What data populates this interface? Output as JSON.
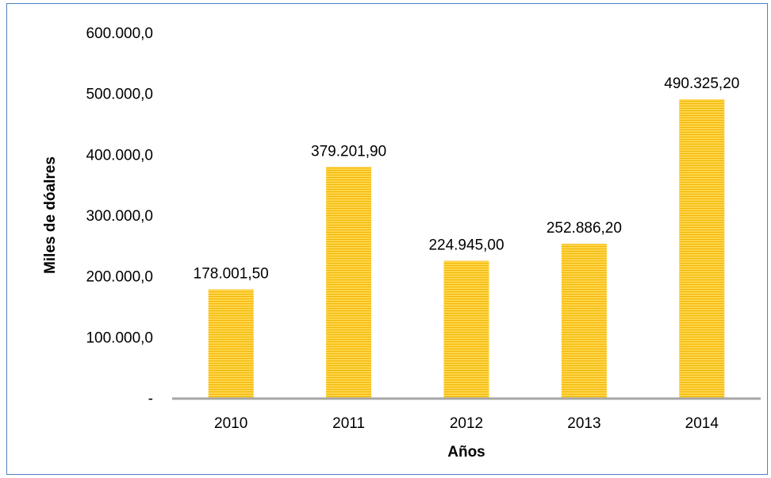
{
  "chart_data": {
    "type": "bar",
    "categories": [
      "2010",
      "2011",
      "2012",
      "2013",
      "2014"
    ],
    "values": [
      178001.5,
      379201.9,
      224945.0,
      252886.2,
      490325.2
    ],
    "data_labels": [
      "178.001,50",
      "379.201,90",
      "224.945,00",
      "252.886,20",
      "490.325,20"
    ],
    "ytick_values": [
      0,
      100000,
      200000,
      300000,
      400000,
      500000,
      600000
    ],
    "ytick_labels": [
      "-",
      "100.000,0",
      "200.000,0",
      "300.000,0",
      "400.000,0",
      "500.000,0",
      "600.000,0"
    ],
    "xlabel": "Años",
    "ylabel": "Miles de dóalres",
    "ylim": [
      0,
      600000
    ],
    "grid": false,
    "legend": "none",
    "colors": {
      "bar_fill": "#ffd54a",
      "bar_stripe": "#f2b705",
      "axis": "#a6a6a6",
      "frame": "#4f81bd"
    }
  }
}
